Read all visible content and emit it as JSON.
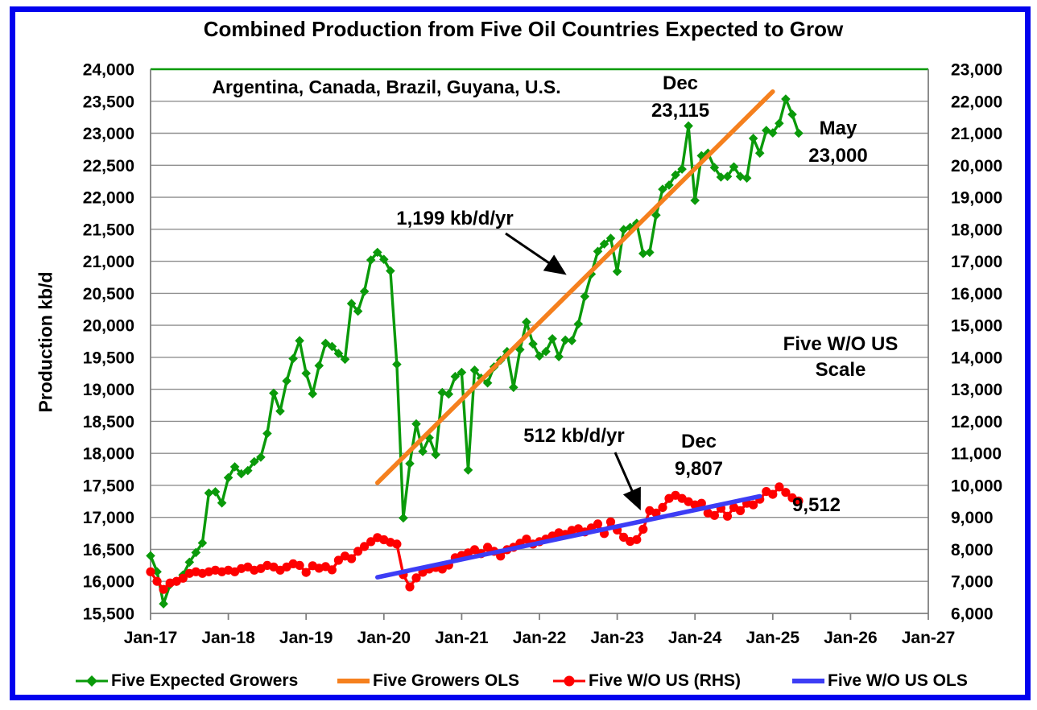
{
  "chart": {
    "title": "Combined Production from Five Oil Countries Expected to Grow",
    "y_axis_title": "Production kb/d",
    "subtitle_annotation": "Argentina, Canada, Brazil, Guyana, U.S."
  },
  "ann": {
    "dec23_l1": "Dec",
    "dec23_l2": "23,115",
    "may25_l1": "May",
    "may25_l2": "23,000",
    "growers_slope": "1,199 kb/d/yr",
    "rhs_scale_l1": "Five W/O US",
    "rhs_scale_l2": "Scale",
    "wous_slope": "512 kb/d/yr",
    "dec24_l1": "Dec",
    "dec24_l2": "9,807",
    "may25_rhs": "9,512"
  },
  "legend": {
    "items": [
      {
        "label": "Five Expected Growers",
        "color": "#0a9a0a",
        "marker": "line-diamond"
      },
      {
        "label": "Five Growers OLS",
        "color": "#f5801e",
        "marker": "thick-line"
      },
      {
        "label": "Five W/O US (RHS)",
        "color": "#fe0000",
        "marker": "line-circle"
      },
      {
        "label": "Five W/O US OLS",
        "color": "#3d3df5",
        "marker": "thick-line"
      }
    ]
  },
  "chart_data": {
    "type": "line",
    "title": "Combined Production from Five Oil Countries Expected to Grow",
    "xlabel": "",
    "ylabel_left": "Production kb/d",
    "ylabel_right": "Five W/O US Scale",
    "x_tick_labels": [
      "Jan-17",
      "Jan-18",
      "Jan-19",
      "Jan-20",
      "Jan-21",
      "Jan-22",
      "Jan-23",
      "Jan-24",
      "Jan-25",
      "Jan-26",
      "Jan-27"
    ],
    "x_axis_months_total": 120,
    "start_month": "2017-01",
    "end_month_of_data": "2025-05",
    "y_left": {
      "min": 15500,
      "max": 24000,
      "step": 500
    },
    "y_right": {
      "min": 6000,
      "max": 23000,
      "step": 1000
    },
    "grid": true,
    "legend_position": "bottom",
    "colors": {
      "growers": "#0a9a0a",
      "growers_ols": "#f5801e",
      "wous": "#fe0000",
      "wous_ols": "#3d3df5",
      "plot_top_border": "#0a9a0a",
      "gridline": "#8f8f8f",
      "axis": "#7f7f7f",
      "outer_border": "#0202ee"
    },
    "series": [
      {
        "name": "Five Expected Growers",
        "axis": "left",
        "marker": "diamond",
        "color": "#0a9a0a",
        "start_month_index": 0,
        "values": [
          16400,
          16150,
          15650,
          15950,
          16000,
          16100,
          16300,
          16450,
          16600,
          17380,
          17400,
          17225,
          17620,
          17790,
          17680,
          17730,
          17870,
          17940,
          18310,
          18940,
          18660,
          19130,
          19480,
          19760,
          19250,
          18930,
          19370,
          19720,
          19670,
          19560,
          19470,
          20340,
          20220,
          20530,
          21020,
          21140,
          21030,
          20850,
          19390,
          16990,
          17840,
          18460,
          18030,
          18245,
          17980,
          18950,
          18925,
          19200,
          19265,
          17740,
          19300,
          19175,
          19100,
          19350,
          19455,
          19590,
          19030,
          19620,
          20050,
          19710,
          19520,
          19590,
          19790,
          19510,
          19770,
          19760,
          20020,
          20450,
          20800,
          21155,
          21270,
          21360,
          20840,
          21495,
          21530,
          21595,
          21120,
          21140,
          21720,
          22125,
          22190,
          22350,
          22440,
          23115,
          21950,
          22650,
          22690,
          22465,
          22315,
          22325,
          22475,
          22325,
          22300,
          22920,
          22690,
          23045,
          23005,
          23155,
          23535,
          23295,
          23000
        ],
        "labeled_points": [
          {
            "month": "2023-12",
            "label": "Dec 23,115",
            "value": 23115
          },
          {
            "month": "2025-05",
            "label": "May 23,000",
            "value": 23000
          }
        ]
      },
      {
        "name": "Five Growers OLS",
        "axis": "left",
        "type": "trend",
        "color": "#f5801e",
        "slope_label": "1,199 kb/d/yr",
        "slope_kb_d_yr": 1199,
        "endpoints": [
          {
            "month_index": 35,
            "value": 17540
          },
          {
            "month_index": 96,
            "value": 23650
          }
        ]
      },
      {
        "name": "Five W/O US (RHS)",
        "axis": "right",
        "marker": "circle",
        "color": "#fe0000",
        "start_month_index": 0,
        "values": [
          7300,
          7000,
          6750,
          6950,
          7000,
          7100,
          7250,
          7300,
          7250,
          7300,
          7350,
          7300,
          7350,
          7300,
          7400,
          7450,
          7350,
          7400,
          7500,
          7450,
          7350,
          7450,
          7550,
          7500,
          7280,
          7490,
          7410,
          7460,
          7360,
          7660,
          7790,
          7710,
          7940,
          8090,
          8240,
          8370,
          8300,
          8220,
          8165,
          7210,
          6830,
          7110,
          7285,
          7385,
          7435,
          7385,
          7510,
          7740,
          7810,
          7890,
          7990,
          7865,
          8065,
          7940,
          7790,
          7990,
          8065,
          8190,
          8320,
          8165,
          8240,
          8320,
          8420,
          8520,
          8470,
          8595,
          8645,
          8545,
          8670,
          8795,
          8495,
          8860,
          8605,
          8380,
          8250,
          8305,
          8630,
          9210,
          9135,
          9310,
          9590,
          9690,
          9590,
          9490,
          9390,
          9440,
          9135,
          9060,
          9285,
          9035,
          9310,
          9210,
          9440,
          9390,
          9565,
          9807,
          9720,
          9950,
          9780,
          9610,
          9512
        ],
        "labeled_points": [
          {
            "month": "2024-12",
            "label": "Dec 9,807",
            "value": 9807
          },
          {
            "month": "2025-05",
            "label": "9,512",
            "value": 9512
          }
        ]
      },
      {
        "name": "Five W/O US OLS",
        "axis": "right",
        "type": "trend",
        "color": "#3d3df5",
        "slope_label": "512 kb/d/yr",
        "slope_kb_d_yr": 512,
        "endpoints": [
          {
            "month_index": 35,
            "value": 7130
          },
          {
            "month_index": 94,
            "value": 9660
          }
        ]
      }
    ],
    "annotations": [
      {
        "text": "Argentina, Canada, Brazil, Guyana, U.S.",
        "position": "top-left-inside-plot"
      },
      {
        "text": "Dec 23,115",
        "points_to": "green series Dec-2023 peak"
      },
      {
        "text": "May 23,000",
        "points_to": "green series May-2025 last point"
      },
      {
        "text": "1,199 kb/d/yr",
        "arrow_to": "orange OLS line"
      },
      {
        "text": "Five W/O US Scale",
        "meaning": "right axis scale note"
      },
      {
        "text": "512 kb/d/yr",
        "arrow_to": "blue OLS line"
      },
      {
        "text": "Dec 9,807",
        "points_to": "red series Dec-2024"
      },
      {
        "text": "9,512",
        "points_to": "red series May-2025 last point"
      }
    ]
  }
}
